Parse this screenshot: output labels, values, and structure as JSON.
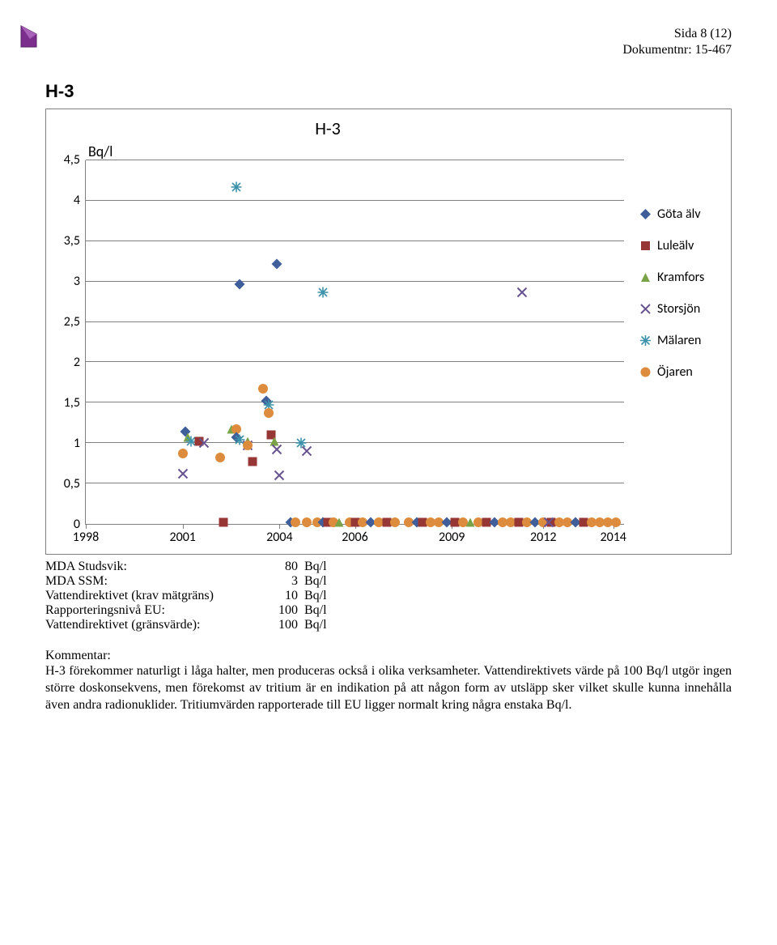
{
  "header": {
    "logo_fill": "#7b2e8c",
    "page_line": "Sida 8 (12)",
    "doc_line": "Dokumentnr: 15-467"
  },
  "section_title": "H-3",
  "chart": {
    "type": "scatter",
    "title": "H-3",
    "y_axis_title": "Bq/l",
    "background_color": "#ffffff",
    "grid_color": "#808080",
    "ylim": [
      0,
      4.5
    ],
    "ytick_step": 0.5,
    "yticks": [
      "4,5",
      "4",
      "3,5",
      "3",
      "2,5",
      "2",
      "1,5",
      "1",
      "0,5",
      "0"
    ],
    "xticks": [
      {
        "label": "1998",
        "pos": 0.0
      },
      {
        "label": "2001",
        "pos": 0.18
      },
      {
        "label": "2004",
        "pos": 0.36
      },
      {
        "label": "2006",
        "pos": 0.5
      },
      {
        "label": "2009",
        "pos": 0.68
      },
      {
        "label": "2012",
        "pos": 0.85
      },
      {
        "label": "2014",
        "pos": 0.98
      }
    ],
    "series": [
      {
        "name": "Göta älv",
        "marker": "diamond",
        "color": "#3f5e9a"
      },
      {
        "name": "Luleälv",
        "marker": "square",
        "color": "#963735"
      },
      {
        "name": "Kramfors",
        "marker": "triangle",
        "color": "#7aa246"
      },
      {
        "name": "Storsjön",
        "marker": "x",
        "color": "#67538f"
      },
      {
        "name": "Mälaren",
        "marker": "asterisk",
        "color": "#3d92ab"
      },
      {
        "name": "Öjaren",
        "marker": "circle",
        "color": "#dd8c3d"
      }
    ],
    "points": [
      {
        "s": 5,
        "x": 0.18,
        "y": 0.85
      },
      {
        "s": 3,
        "x": 0.18,
        "y": 0.6
      },
      {
        "s": 0,
        "x": 0.185,
        "y": 1.12
      },
      {
        "s": 2,
        "x": 0.19,
        "y": 1.05
      },
      {
        "s": 4,
        "x": 0.195,
        "y": 1.0
      },
      {
        "s": 1,
        "x": 0.21,
        "y": 1.0
      },
      {
        "s": 3,
        "x": 0.22,
        "y": 0.98
      },
      {
        "s": 5,
        "x": 0.25,
        "y": 0.8
      },
      {
        "s": 2,
        "x": 0.27,
        "y": 1.15
      },
      {
        "s": 5,
        "x": 0.28,
        "y": 1.15
      },
      {
        "s": 0,
        "x": 0.28,
        "y": 1.05
      },
      {
        "s": 4,
        "x": 0.285,
        "y": 1.02
      },
      {
        "s": 0,
        "x": 0.285,
        "y": 2.95
      },
      {
        "s": 2,
        "x": 0.3,
        "y": 1.0
      },
      {
        "s": 3,
        "x": 0.3,
        "y": 0.95
      },
      {
        "s": 5,
        "x": 0.3,
        "y": 0.95
      },
      {
        "s": 1,
        "x": 0.31,
        "y": 0.75
      },
      {
        "s": 1,
        "x": 0.255,
        "y": 0.0
      },
      {
        "s": 5,
        "x": 0.33,
        "y": 1.65
      },
      {
        "s": 0,
        "x": 0.335,
        "y": 1.5
      },
      {
        "s": 4,
        "x": 0.34,
        "y": 1.45
      },
      {
        "s": 5,
        "x": 0.34,
        "y": 1.35
      },
      {
        "s": 0,
        "x": 0.355,
        "y": 3.2
      },
      {
        "s": 1,
        "x": 0.345,
        "y": 1.08
      },
      {
        "s": 2,
        "x": 0.35,
        "y": 1.0
      },
      {
        "s": 3,
        "x": 0.355,
        "y": 0.9
      },
      {
        "s": 3,
        "x": 0.36,
        "y": 0.58
      },
      {
        "s": 4,
        "x": 0.28,
        "y": 4.15
      },
      {
        "s": 4,
        "x": 0.4,
        "y": 0.98
      },
      {
        "s": 3,
        "x": 0.41,
        "y": 0.88
      },
      {
        "s": 4,
        "x": 0.44,
        "y": 2.85
      },
      {
        "s": 0,
        "x": 0.38,
        "y": 0.0
      },
      {
        "s": 5,
        "x": 0.39,
        "y": 0.0
      },
      {
        "s": 5,
        "x": 0.41,
        "y": 0.0
      },
      {
        "s": 5,
        "x": 0.43,
        "y": 0.0
      },
      {
        "s": 0,
        "x": 0.44,
        "y": 0.0
      },
      {
        "s": 1,
        "x": 0.45,
        "y": 0.0
      },
      {
        "s": 5,
        "x": 0.46,
        "y": 0.0
      },
      {
        "s": 2,
        "x": 0.47,
        "y": 0.0
      },
      {
        "s": 5,
        "x": 0.49,
        "y": 0.0
      },
      {
        "s": 1,
        "x": 0.5,
        "y": 0.0
      },
      {
        "s": 5,
        "x": 0.515,
        "y": 0.0
      },
      {
        "s": 0,
        "x": 0.53,
        "y": 0.0
      },
      {
        "s": 5,
        "x": 0.545,
        "y": 0.0
      },
      {
        "s": 1,
        "x": 0.56,
        "y": 0.0
      },
      {
        "s": 5,
        "x": 0.575,
        "y": 0.0
      },
      {
        "s": 5,
        "x": 0.6,
        "y": 0.0
      },
      {
        "s": 0,
        "x": 0.615,
        "y": 0.0
      },
      {
        "s": 1,
        "x": 0.625,
        "y": 0.0
      },
      {
        "s": 5,
        "x": 0.64,
        "y": 0.0
      },
      {
        "s": 5,
        "x": 0.655,
        "y": 0.0
      },
      {
        "s": 0,
        "x": 0.67,
        "y": 0.0
      },
      {
        "s": 1,
        "x": 0.685,
        "y": 0.0
      },
      {
        "s": 5,
        "x": 0.7,
        "y": 0.0
      },
      {
        "s": 2,
        "x": 0.715,
        "y": 0.0
      },
      {
        "s": 5,
        "x": 0.73,
        "y": 0.0
      },
      {
        "s": 1,
        "x": 0.745,
        "y": 0.0
      },
      {
        "s": 0,
        "x": 0.76,
        "y": 0.0
      },
      {
        "s": 5,
        "x": 0.775,
        "y": 0.0
      },
      {
        "s": 5,
        "x": 0.79,
        "y": 0.0
      },
      {
        "s": 1,
        "x": 0.805,
        "y": 0.0
      },
      {
        "s": 5,
        "x": 0.82,
        "y": 0.0
      },
      {
        "s": 0,
        "x": 0.835,
        "y": 0.0
      },
      {
        "s": 5,
        "x": 0.85,
        "y": 0.0
      },
      {
        "s": 1,
        "x": 0.865,
        "y": 0.0
      },
      {
        "s": 5,
        "x": 0.88,
        "y": 0.0
      },
      {
        "s": 3,
        "x": 0.86,
        "y": 0.0
      },
      {
        "s": 5,
        "x": 0.895,
        "y": 0.0
      },
      {
        "s": 0,
        "x": 0.91,
        "y": 0.0
      },
      {
        "s": 1,
        "x": 0.925,
        "y": 0.0
      },
      {
        "s": 5,
        "x": 0.94,
        "y": 0.0
      },
      {
        "s": 5,
        "x": 0.955,
        "y": 0.0
      },
      {
        "s": 5,
        "x": 0.97,
        "y": 0.0
      },
      {
        "s": 5,
        "x": 0.985,
        "y": 0.0
      },
      {
        "s": 3,
        "x": 0.81,
        "y": 2.85
      }
    ]
  },
  "table": {
    "rows": [
      {
        "label": "MDA Studsvik:",
        "value": "80",
        "unit": "Bq/l"
      },
      {
        "label": "MDA SSM:",
        "value": "3",
        "unit": "Bq/l"
      },
      {
        "label": "Vattendirektivet (krav mätgräns)",
        "value": "10",
        "unit": "Bq/l"
      },
      {
        "label": "Rapporteringsnivå EU:",
        "value": "100",
        "unit": "Bq/l"
      },
      {
        "label": "Vattendirektivet (gränsvärde):",
        "value": "100",
        "unit": "Bq/l"
      }
    ]
  },
  "comment": {
    "heading": "Kommentar:",
    "body": " H-3 förekommer naturligt i låga halter, men produceras också i olika verksamheter. Vattendirektivets värde på 100 Bq/l utgör ingen större doskonsekvens, men förekomst av tritium är en indikation på att någon form av utsläpp sker vilket skulle kunna innehålla även andra radionuklider. Tritiumvärden rapporterade till EU ligger normalt kring några enstaka Bq/l."
  }
}
